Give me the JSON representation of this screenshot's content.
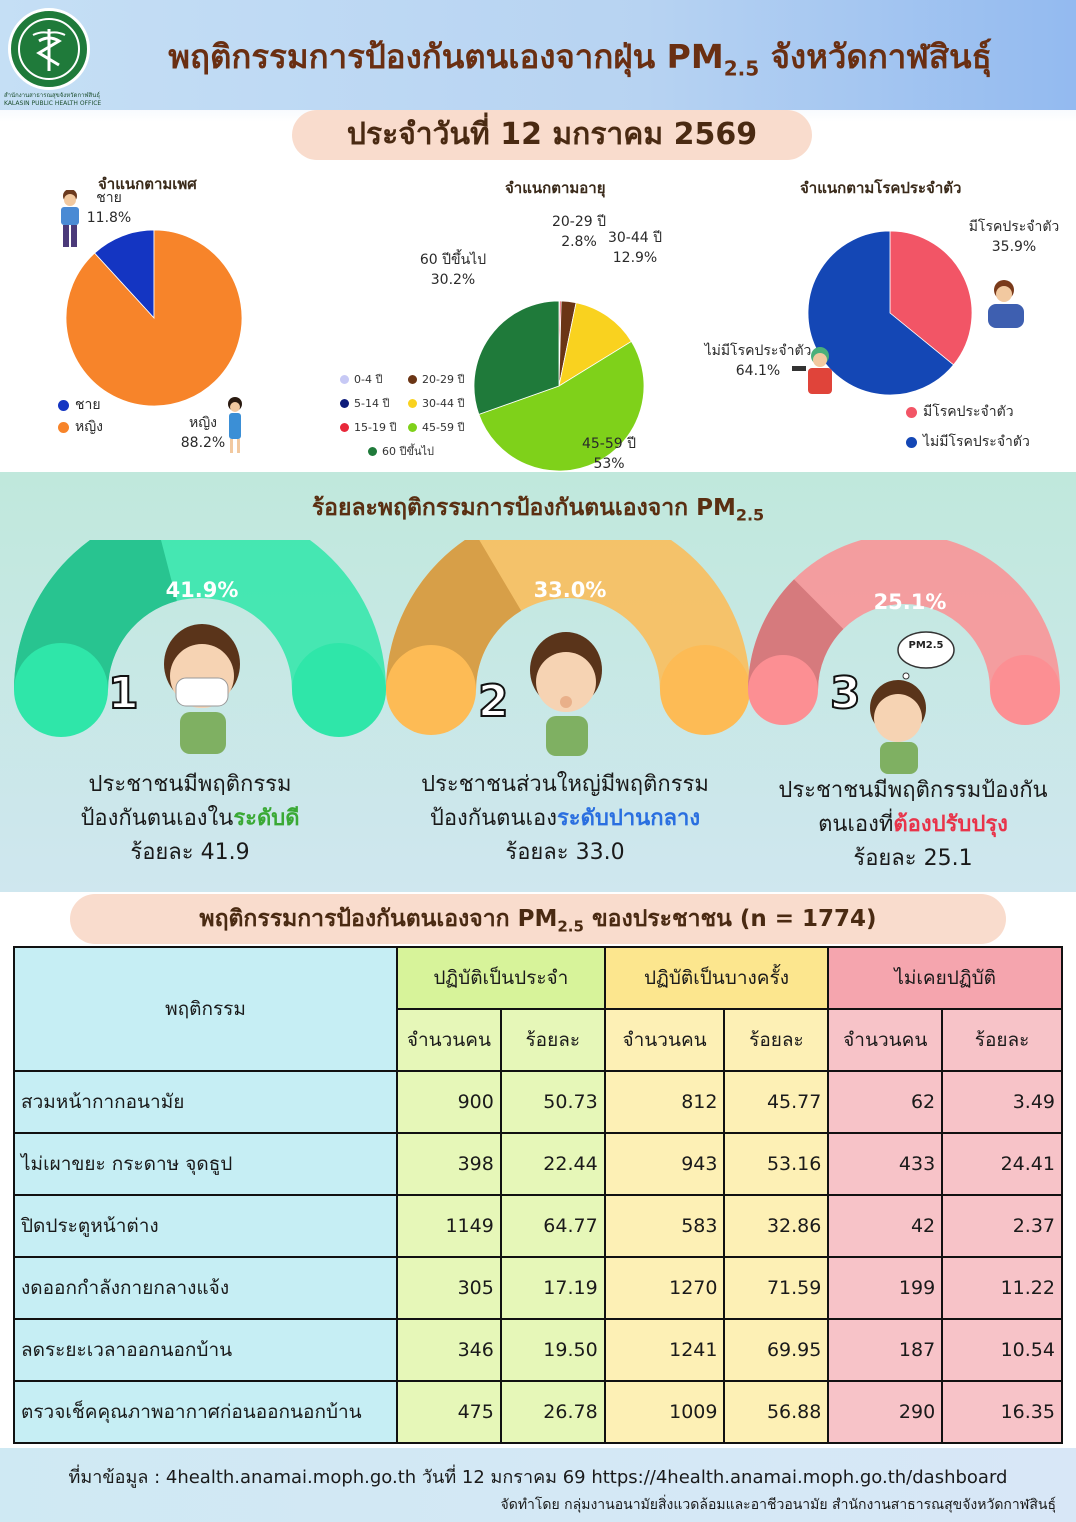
{
  "header": {
    "title": "พฤติกรรมการป้องกันตนเองจากฝุ่น PM",
    "title_sub": "2.5",
    "title_suffix": "จังหวัดกาฬสินธุ์",
    "logo_office": "สำนักงานสาธารณสุขจังหวัดกาฬสินธุ์ KALASIN PUBLIC HEALTH OFFICE",
    "date": "ประจำวันที่ 12 มกราคม 2569"
  },
  "colors": {
    "green": "#29a83f",
    "orange": "#f5842a",
    "blue": "#1543b5",
    "red": "#f05a6a"
  },
  "chart_data": [
    {
      "type": "pie",
      "title": "จำแนกตามเพศ",
      "categories": [
        "ชาย",
        "หญิง"
      ],
      "values": [
        11.8,
        88.2
      ],
      "labels": [
        "11.8%",
        "88.2%"
      ],
      "colors": [
        "#1435c2",
        "#f7842a"
      ],
      "legend": [
        "ชาย",
        "หญิง"
      ]
    },
    {
      "type": "pie",
      "title": "จำแนกตามอายุ",
      "categories": [
        "0-4 ปี",
        "5-14 ปี",
        "15-19 ปี",
        "20-29 ปี",
        "30-44 ปี",
        "45-59 ปี",
        "60 ปีขึ้นไป"
      ],
      "values": [
        0.05,
        0.05,
        0.3,
        2.8,
        12.9,
        53,
        30.2
      ],
      "labels": {
        "20-29 ปี": "2.8%",
        "30-44 ปี": "12.9%",
        "45-59 ปี": "53%",
        "60 ปีขึ้นไป": "30.2%"
      },
      "colors": [
        "#c7c9f5",
        "#0d1b7a",
        "#e8283a",
        "#6b3515",
        "#f9d21f",
        "#7fd11a",
        "#1f7a3a"
      ],
      "legend": [
        "0-4 ปี",
        "5-14 ปี",
        "15-19 ปี",
        "20-29 ปี",
        "30-44 ปี",
        "45-59 ปี",
        "60 ปีขึ้นไป"
      ]
    },
    {
      "type": "pie",
      "title": "จำแนกตามโรคประจำตัว",
      "categories": [
        "มีโรคประจำตัว",
        "ไม่มีโรคประจำตัว"
      ],
      "values": [
        35.9,
        64.1
      ],
      "labels": [
        "35.9%",
        "64.1%"
      ],
      "colors": [
        "#f25566",
        "#1447b5"
      ],
      "legend": [
        "มีโรคประจำตัว",
        "ไม่มีโรคประจำตัว"
      ]
    }
  ],
  "section2": {
    "title": "ร้อยละพฤติกรรมการป้องกันตนเองจาก PM",
    "title_sub": "2.5",
    "levels": [
      {
        "rank": "1",
        "pct": "41.9%",
        "fill": 41.9,
        "line1": "ประชาชนมีพฤติกรรม",
        "line2a": "ป้องกันตนเองใน",
        "line2b": "ระดับดี",
        "line3": "ร้อยละ 41.9",
        "color": "#2fe6a9"
      },
      {
        "rank": "2",
        "pct": "33.0%",
        "fill": 33.0,
        "line1": "ประชาชนส่วนใหญ่มีพฤติกรรม",
        "line2a": "ป้องกันตนเอง",
        "line2b": "ระดับปานกลาง",
        "line3": "ร้อยละ 33.0",
        "color": "#fdbb55"
      },
      {
        "rank": "3",
        "pct": "25.1%",
        "fill": 25.1,
        "line1": "ประชาชนมีพฤติกรรมป้องกัน",
        "line2a": "ตนเองที่",
        "line2b": "ต้องปรับปรุง",
        "line3": "ร้อยละ 25.1",
        "color": "#fc8f93"
      }
    ],
    "pm_bubble": "PM2.5"
  },
  "table": {
    "banner": "พฤติกรรมการป้องกันตนเองจาก PM",
    "banner_sub": "2.5",
    "banner_suffix": "ของประชาชน (n = 1774)",
    "col_behavior": "พฤติกรรม",
    "groups": [
      "ปฏิบัติเป็นประจำ",
      "ปฏิบัติเป็นบางครั้ง",
      "ไม่เคยปฏิบัติ"
    ],
    "sub_count": "จำนวนคน",
    "sub_pct": "ร้อยละ",
    "rows": [
      {
        "behavior": "สวมหน้ากากอนามัย",
        "values": [
          "900",
          "50.73",
          "812",
          "45.77",
          "62",
          "3.49"
        ]
      },
      {
        "behavior": "ไม่เผาขยะ กระดาษ จุดธูป",
        "values": [
          "398",
          "22.44",
          "943",
          "53.16",
          "433",
          "24.41"
        ]
      },
      {
        "behavior": "ปิดประตูหน้าต่าง",
        "values": [
          "1149",
          "64.77",
          "583",
          "32.86",
          "42",
          "2.37"
        ]
      },
      {
        "behavior": "งดออกกำลังกายกลางแจ้ง",
        "values": [
          "305",
          "17.19",
          "1270",
          "71.59",
          "199",
          "11.22"
        ]
      },
      {
        "behavior": "ลดระยะเวลาออกนอกบ้าน",
        "values": [
          "346",
          "19.50",
          "1241",
          "69.95",
          "187",
          "10.54"
        ]
      },
      {
        "behavior": "ตรวจเช็คคุณภาพอากาศก่อนออกนอกบ้าน",
        "values": [
          "475",
          "26.78",
          "1009",
          "56.88",
          "290",
          "16.35"
        ]
      }
    ]
  },
  "footer": {
    "source": "ที่มาข้อมูล : 4health.anamai.moph.go.th วันที่ 12 มกราคม 69 https://4health.anamai.moph.go.th/dashboard",
    "credit": "จัดทำโดย กลุ่มงานอนามัยสิ่งแวดล้อมและอาชีวอนามัย สำนักงานสาธารณสุขจังหวัดกาฬสินธุ์"
  }
}
